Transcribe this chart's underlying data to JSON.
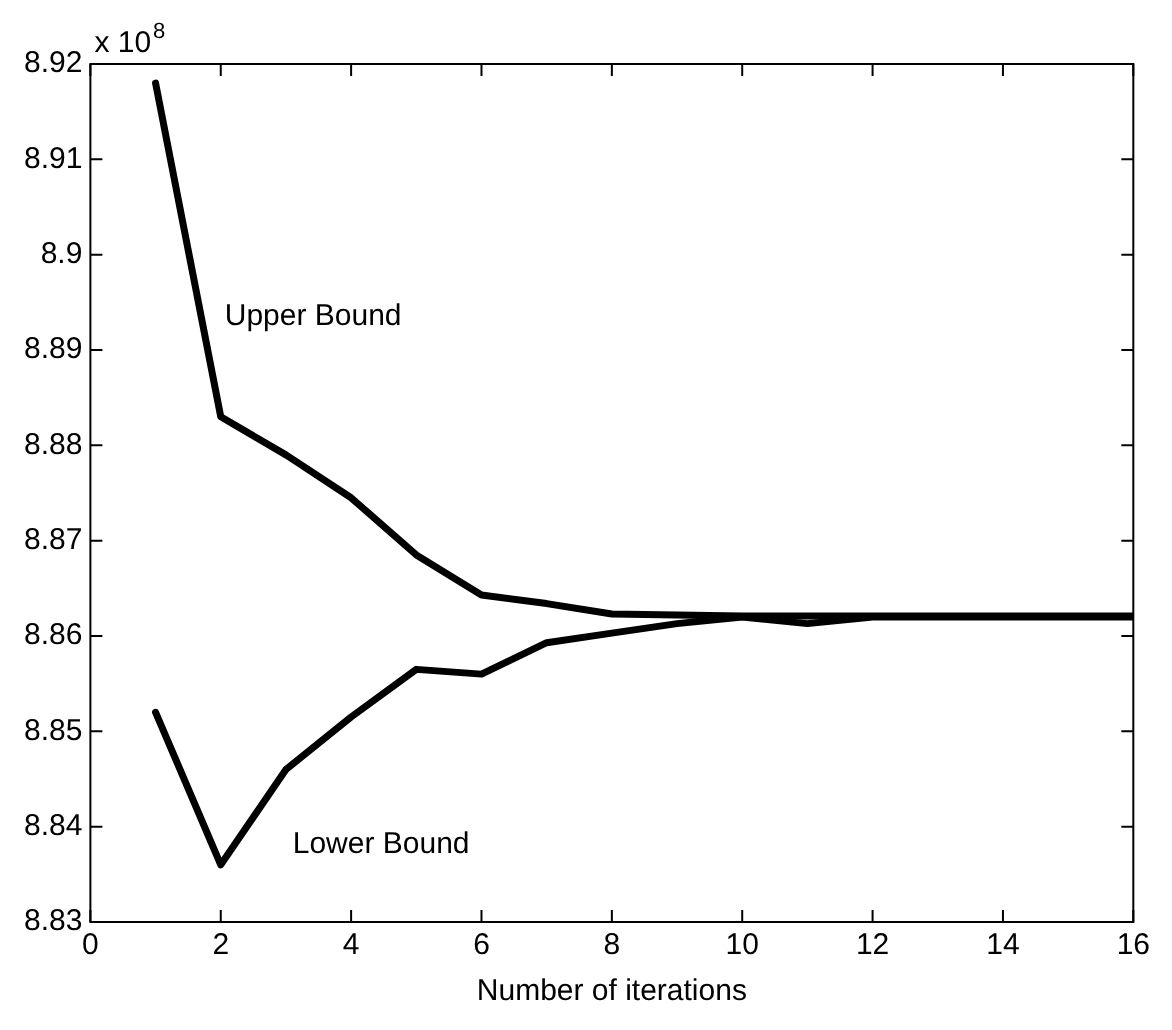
{
  "chart_data": {
    "type": "line",
    "xlabel": "Number of iterations",
    "annotations": [
      "x 10$^{8}$"
    ],
    "x": [
      1,
      2,
      3,
      4,
      5,
      6,
      7,
      8,
      9,
      10,
      11,
      12,
      13,
      14,
      15,
      16
    ],
    "series": [
      {
        "name": "Upper Bound",
        "color": "#000000",
        "values": [
          8.918,
          8.883,
          8.879,
          8.8745,
          8.8685,
          8.8643,
          8.8634,
          8.8623,
          8.8622,
          8.8621,
          8.8621,
          8.8621,
          8.8621,
          8.8621,
          8.8621,
          8.8621
        ]
      },
      {
        "name": "Lower Bound",
        "color": "#000000",
        "values": [
          8.852,
          8.836,
          8.846,
          8.8515,
          8.8565,
          8.856,
          8.8593,
          8.8603,
          8.8613,
          8.862,
          8.8613,
          8.862,
          8.862,
          8.862,
          8.862,
          8.862
        ]
      }
    ],
    "xlim": [
      0,
      16
    ],
    "xticks": [
      0,
      2,
      4,
      6,
      8,
      10,
      12,
      14,
      16
    ],
    "ylim": [
      8.83,
      8.92
    ],
    "yticks": [
      8.83,
      8.84,
      8.85,
      8.86,
      8.87,
      8.88,
      8.89,
      8.9,
      8.91,
      8.92
    ],
    "grid": false,
    "legend": false,
    "marker": "none",
    "line_style": "solid"
  }
}
